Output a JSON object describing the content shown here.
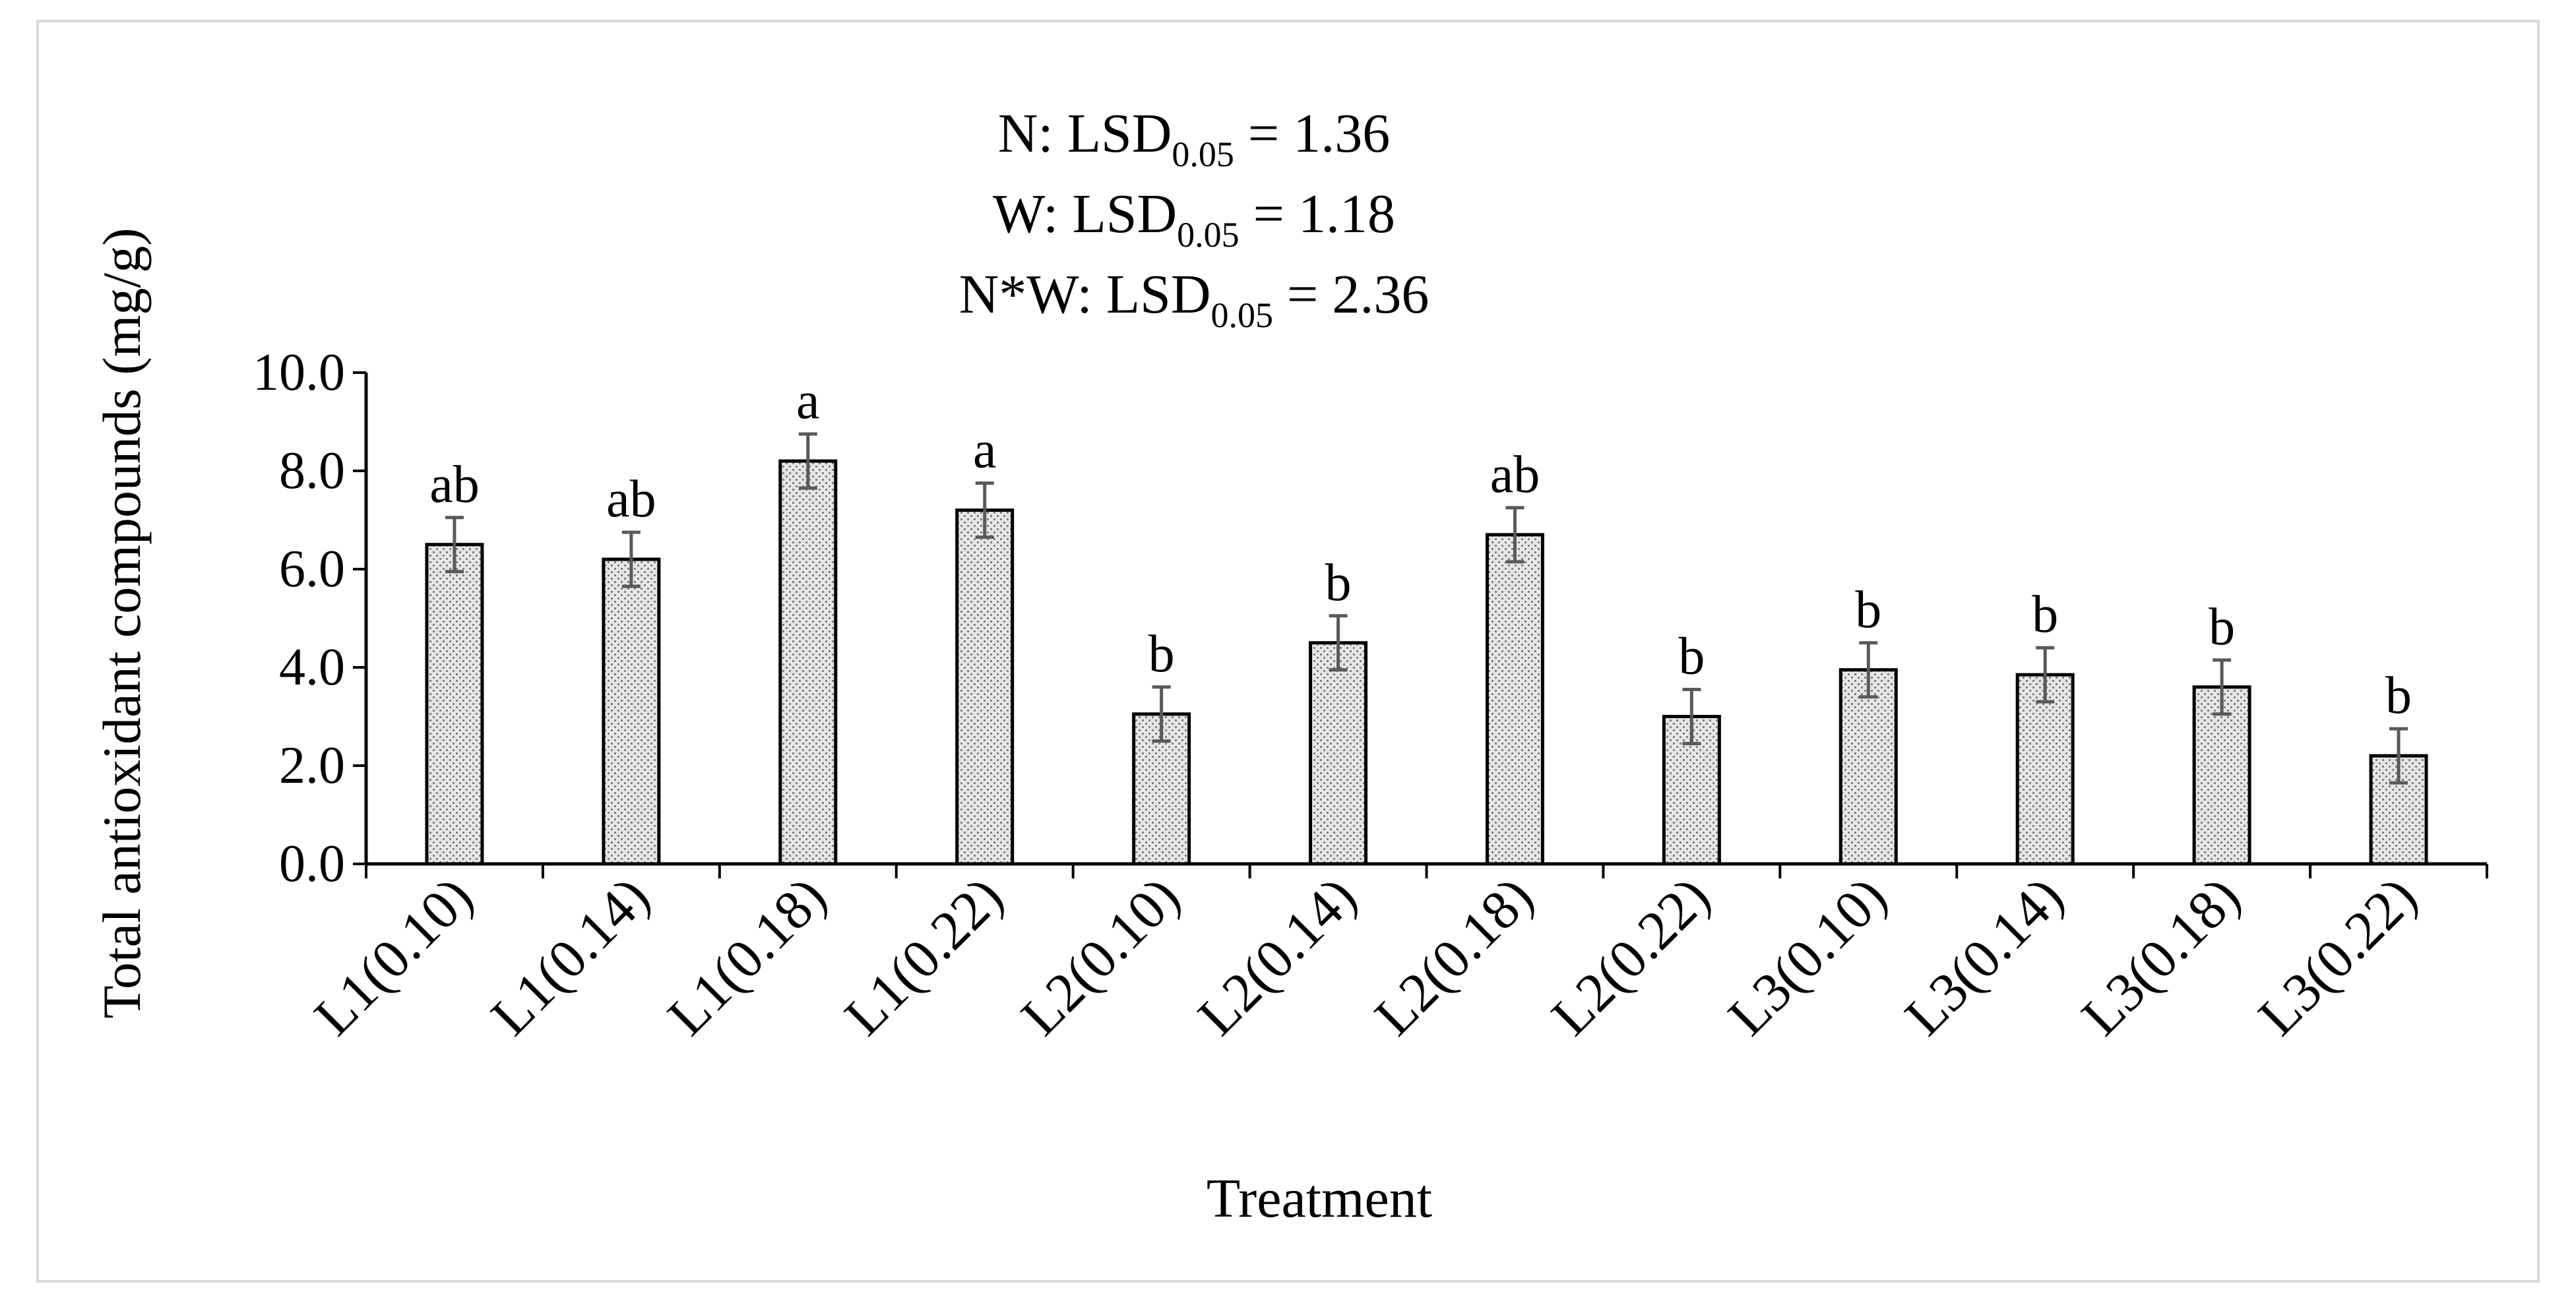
{
  "chart_data": {
    "type": "bar",
    "title": "",
    "annotations": [
      {
        "prefix": "N: LSD",
        "subscript": "0.05",
        "suffix": " = 1.36"
      },
      {
        "prefix": "W: LSD",
        "subscript": "0.05",
        "suffix": " = 1.18"
      },
      {
        "prefix": "N*W: LSD",
        "subscript": "0.05",
        "suffix": " = 2.36"
      }
    ],
    "categories": [
      "L1(0.10)",
      "L1(0.14)",
      "L1(0.18)",
      "L1(0.22)",
      "L2(0.10)",
      "L2(0.14)",
      "L2(0.18)",
      "L2(0.22)",
      "L3(0.10)",
      "L3(0.14)",
      "L3(0.18)",
      "L3(0.22)"
    ],
    "values": [
      6.5,
      6.2,
      8.2,
      7.2,
      3.05,
      4.5,
      6.7,
      3.0,
      3.95,
      3.85,
      3.6,
      2.2
    ],
    "errors": [
      0.55,
      0.55,
      0.55,
      0.55,
      0.55,
      0.55,
      0.55,
      0.55,
      0.55,
      0.55,
      0.55,
      0.55
    ],
    "letters": [
      "ab",
      "ab",
      "a",
      "a",
      "b",
      "b",
      "ab",
      "b",
      "b",
      "b",
      "b",
      "b"
    ],
    "ylim": [
      0,
      10
    ],
    "yticks": [
      "0.0",
      "2.0",
      "4.0",
      "6.0",
      "8.0",
      "10.0"
    ],
    "xlabel": "Treatment",
    "ylabel": "Total antioxidant compounds (mg/g)",
    "colors": {
      "bar_fill": "#e6e6e6",
      "bar_dot": "#7a7a7a",
      "bar_edge": "#000000",
      "error_bar": "#595959",
      "frame": "#d9d9d9"
    }
  }
}
